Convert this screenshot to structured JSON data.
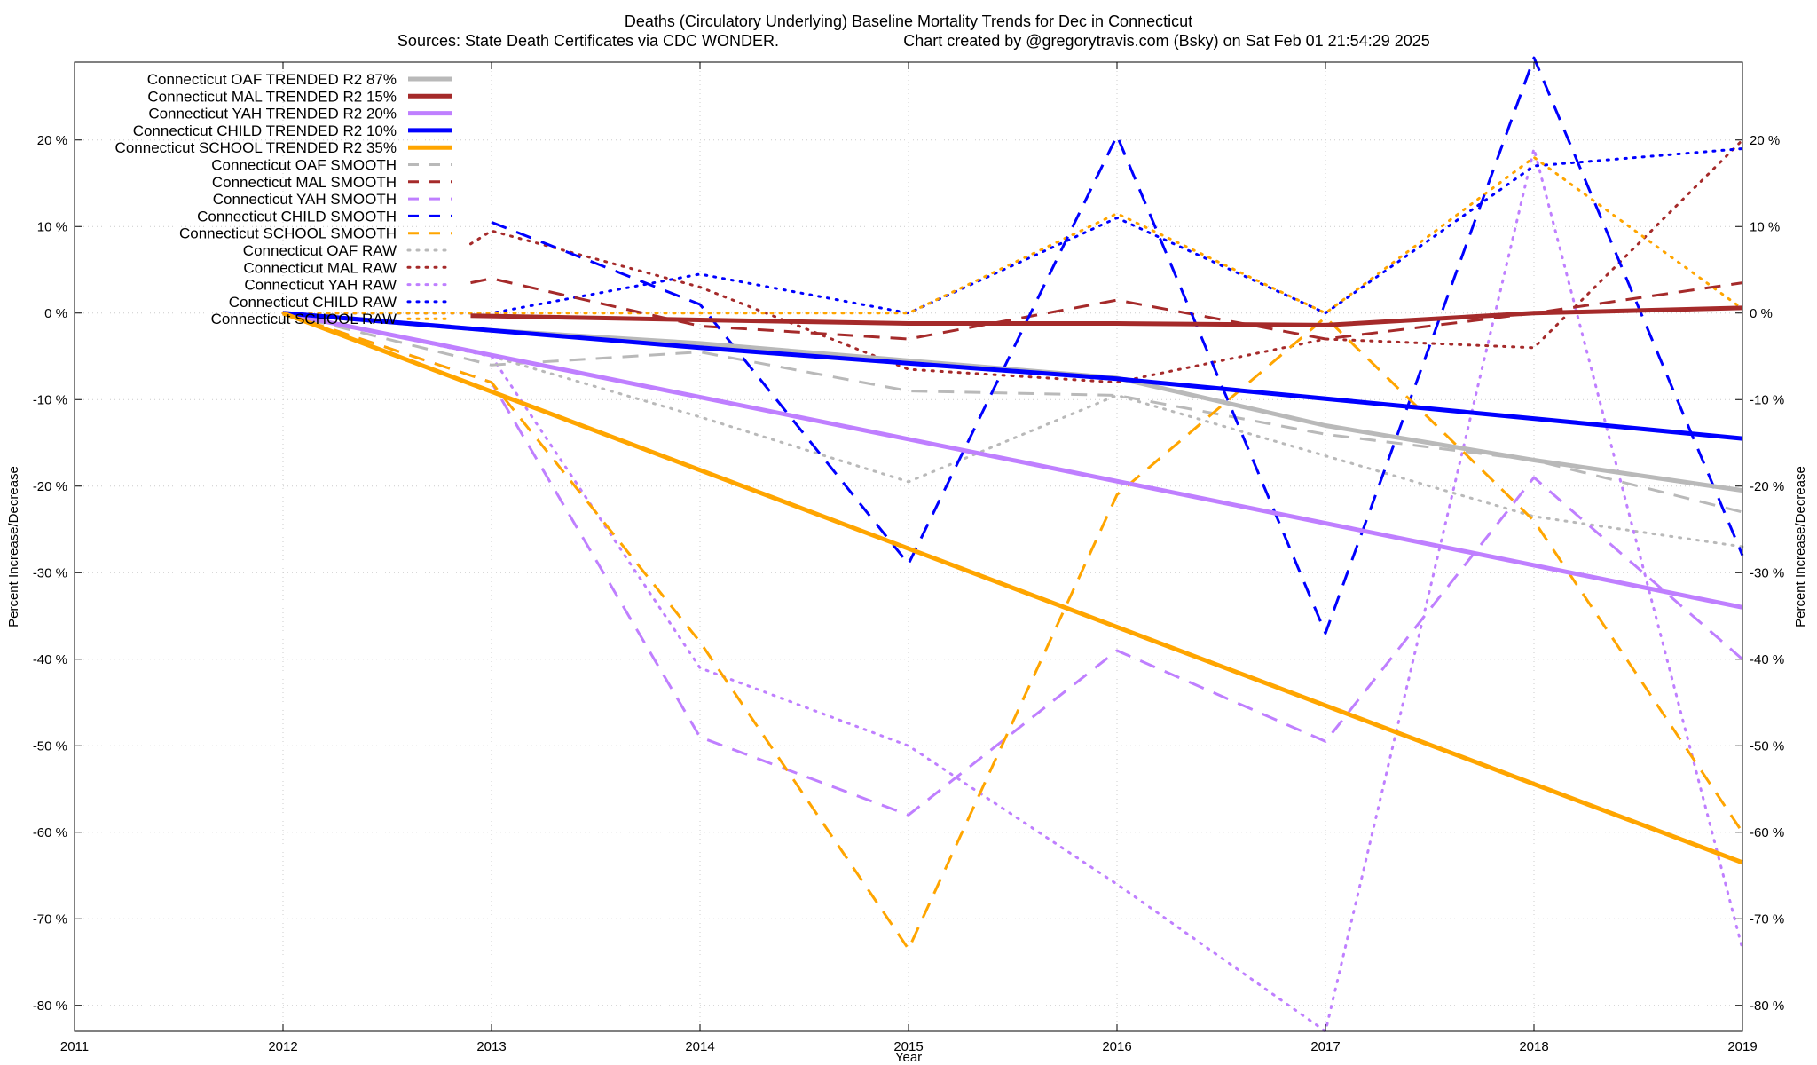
{
  "chart_data": {
    "type": "line",
    "title": "Deaths (Circulatory Underlying)  Baseline Mortality Trends for Dec in Connecticut",
    "subtitle_left": "Sources: State Death Certificates via CDC WONDER.",
    "subtitle_right": "Chart created by @gregorytravis.com (Bsky) on Sat Feb 01 21:54:29 2025",
    "xlabel": "Year",
    "ylabel": "Percent Increase/Decrease",
    "y2label": "Percent Increase/Decrease",
    "xlim": [
      2011,
      2019
    ],
    "ylim": [
      -83,
      29
    ],
    "xticks": [
      "2011",
      "2012",
      "2013",
      "2014",
      "2015",
      "2016",
      "2017",
      "2018",
      "2019"
    ],
    "yticks": [
      "20 %",
      "10 %",
      "0 %",
      "-10 %",
      "-20 %",
      "-30 %",
      "-40 %",
      "-50 %",
      "-60 %",
      "-70 %",
      "-80 %"
    ],
    "ytick_values": [
      20,
      10,
      0,
      -10,
      -20,
      -30,
      -40,
      -50,
      -60,
      -70,
      -80
    ],
    "grid": true,
    "legend_position": "top-left",
    "colors": {
      "oaf": "#b9b9b9",
      "mal": "#a52a2a",
      "yah": "#bf7fff",
      "child": "#0000ff",
      "school": "#ffa500"
    },
    "series": [
      {
        "name": "Connecticut OAF TRENDED R2  87%",
        "color": "#b9b9b9",
        "style": "solid",
        "x": [
          2012,
          2013,
          2014,
          2015,
          2016,
          2017,
          2018,
          2019
        ],
        "y": [
          0,
          -2,
          -3.5,
          -5.5,
          -7.5,
          -13,
          -17,
          -20.5
        ]
      },
      {
        "name": "Connecticut MAL TRENDED R2  15%",
        "color": "#a52a2a",
        "style": "solid",
        "x": [
          2012.9,
          2014,
          2015,
          2016,
          2017,
          2018,
          2019
        ],
        "y": [
          -0.3,
          -0.8,
          -1.2,
          -1.2,
          -1.4,
          0,
          0.6
        ]
      },
      {
        "name": "Connecticut YAH TRENDED R2  20%",
        "color": "#bf7fff",
        "style": "solid",
        "x": [
          2012,
          2019
        ],
        "y": [
          0,
          -34
        ]
      },
      {
        "name": "Connecticut CHILD TRENDED R2  10%",
        "color": "#0000ff",
        "style": "solid",
        "x": [
          2012,
          2014,
          2016,
          2019
        ],
        "y": [
          0,
          -4,
          -7.6,
          -14.5
        ]
      },
      {
        "name": "Connecticut SCHOOL TRENDED R2  35%",
        "color": "#ffa500",
        "style": "solid",
        "x": [
          2012,
          2019
        ],
        "y": [
          0,
          -63.5
        ]
      },
      {
        "name": "Connecticut OAF SMOOTH",
        "color": "#b9b9b9",
        "style": "dashed",
        "x": [
          2012,
          2013,
          2014,
          2015,
          2016,
          2017,
          2018,
          2019
        ],
        "y": [
          0,
          -6,
          -4.5,
          -9,
          -9.5,
          -14,
          -17,
          -23
        ]
      },
      {
        "name": "Connecticut MAL SMOOTH",
        "color": "#a52a2a",
        "style": "dashed",
        "x": [
          2012.9,
          2013,
          2014,
          2015,
          2016,
          2017,
          2018,
          2019
        ],
        "y": [
          3.5,
          4,
          -1.5,
          -3,
          1.5,
          -3,
          0,
          3.5
        ]
      },
      {
        "name": "Connecticut YAH SMOOTH",
        "color": "#bf7fff",
        "style": "dashed",
        "x": [
          2012,
          2013,
          2014,
          2015,
          2016,
          2017,
          2018,
          2019
        ],
        "y": [
          0,
          -8,
          -49,
          -58,
          -39,
          -49.5,
          -19,
          -40
        ]
      },
      {
        "name": "Connecticut CHILD SMOOTH",
        "color": "#0000ff",
        "style": "dashed",
        "x": [
          2013,
          2014,
          2015,
          2016,
          2017,
          2018,
          2019
        ],
        "y": [
          10.5,
          1,
          -29,
          20.5,
          -37,
          29.5,
          -28
        ]
      },
      {
        "name": "Connecticut SCHOOL SMOOTH",
        "color": "#ffa500",
        "style": "dashed",
        "x": [
          2012,
          2013,
          2014,
          2015,
          2016,
          2017,
          2018,
          2019
        ],
        "y": [
          0,
          -8,
          -38,
          -73.5,
          -21,
          -0.5,
          -24,
          -60
        ]
      },
      {
        "name": "Connecticut OAF RAW",
        "color": "#b9b9b9",
        "style": "dotted",
        "x": [
          2012,
          2013,
          2014,
          2015,
          2016,
          2017,
          2018,
          2019
        ],
        "y": [
          0,
          -5,
          -12,
          -19.5,
          -9.5,
          -16.5,
          -23.5,
          -27
        ]
      },
      {
        "name": "Connecticut MAL RAW",
        "color": "#a52a2a",
        "style": "dotted",
        "x": [
          2012.9,
          2013,
          2014,
          2015,
          2016,
          2017,
          2018,
          2019
        ],
        "y": [
          8,
          9.5,
          3,
          -6.5,
          -8,
          -3,
          -4,
          20
        ]
      },
      {
        "name": "Connecticut YAH RAW",
        "color": "#bf7fff",
        "style": "dotted",
        "x": [
          2012,
          2013,
          2014,
          2015,
          2016,
          2017,
          2018,
          2019
        ],
        "y": [
          0,
          -5,
          -41,
          -50,
          -66,
          -83,
          19,
          -73.5
        ]
      },
      {
        "name": "Connecticut CHILD RAW",
        "color": "#0000ff",
        "style": "dotted",
        "x": [
          2012,
          2013,
          2014,
          2015,
          2016,
          2017,
          2018,
          2019
        ],
        "y": [
          0,
          0,
          4.5,
          0,
          11,
          0,
          17,
          19
        ]
      },
      {
        "name": "Connecticut SCHOOL RAW",
        "color": "#ffa500",
        "style": "dotted",
        "x": [
          2012,
          2013,
          2014,
          2015,
          2016,
          2017,
          2018,
          2019
        ],
        "y": [
          0,
          0,
          0,
          0,
          11.5,
          0,
          18,
          0.5
        ]
      }
    ]
  }
}
